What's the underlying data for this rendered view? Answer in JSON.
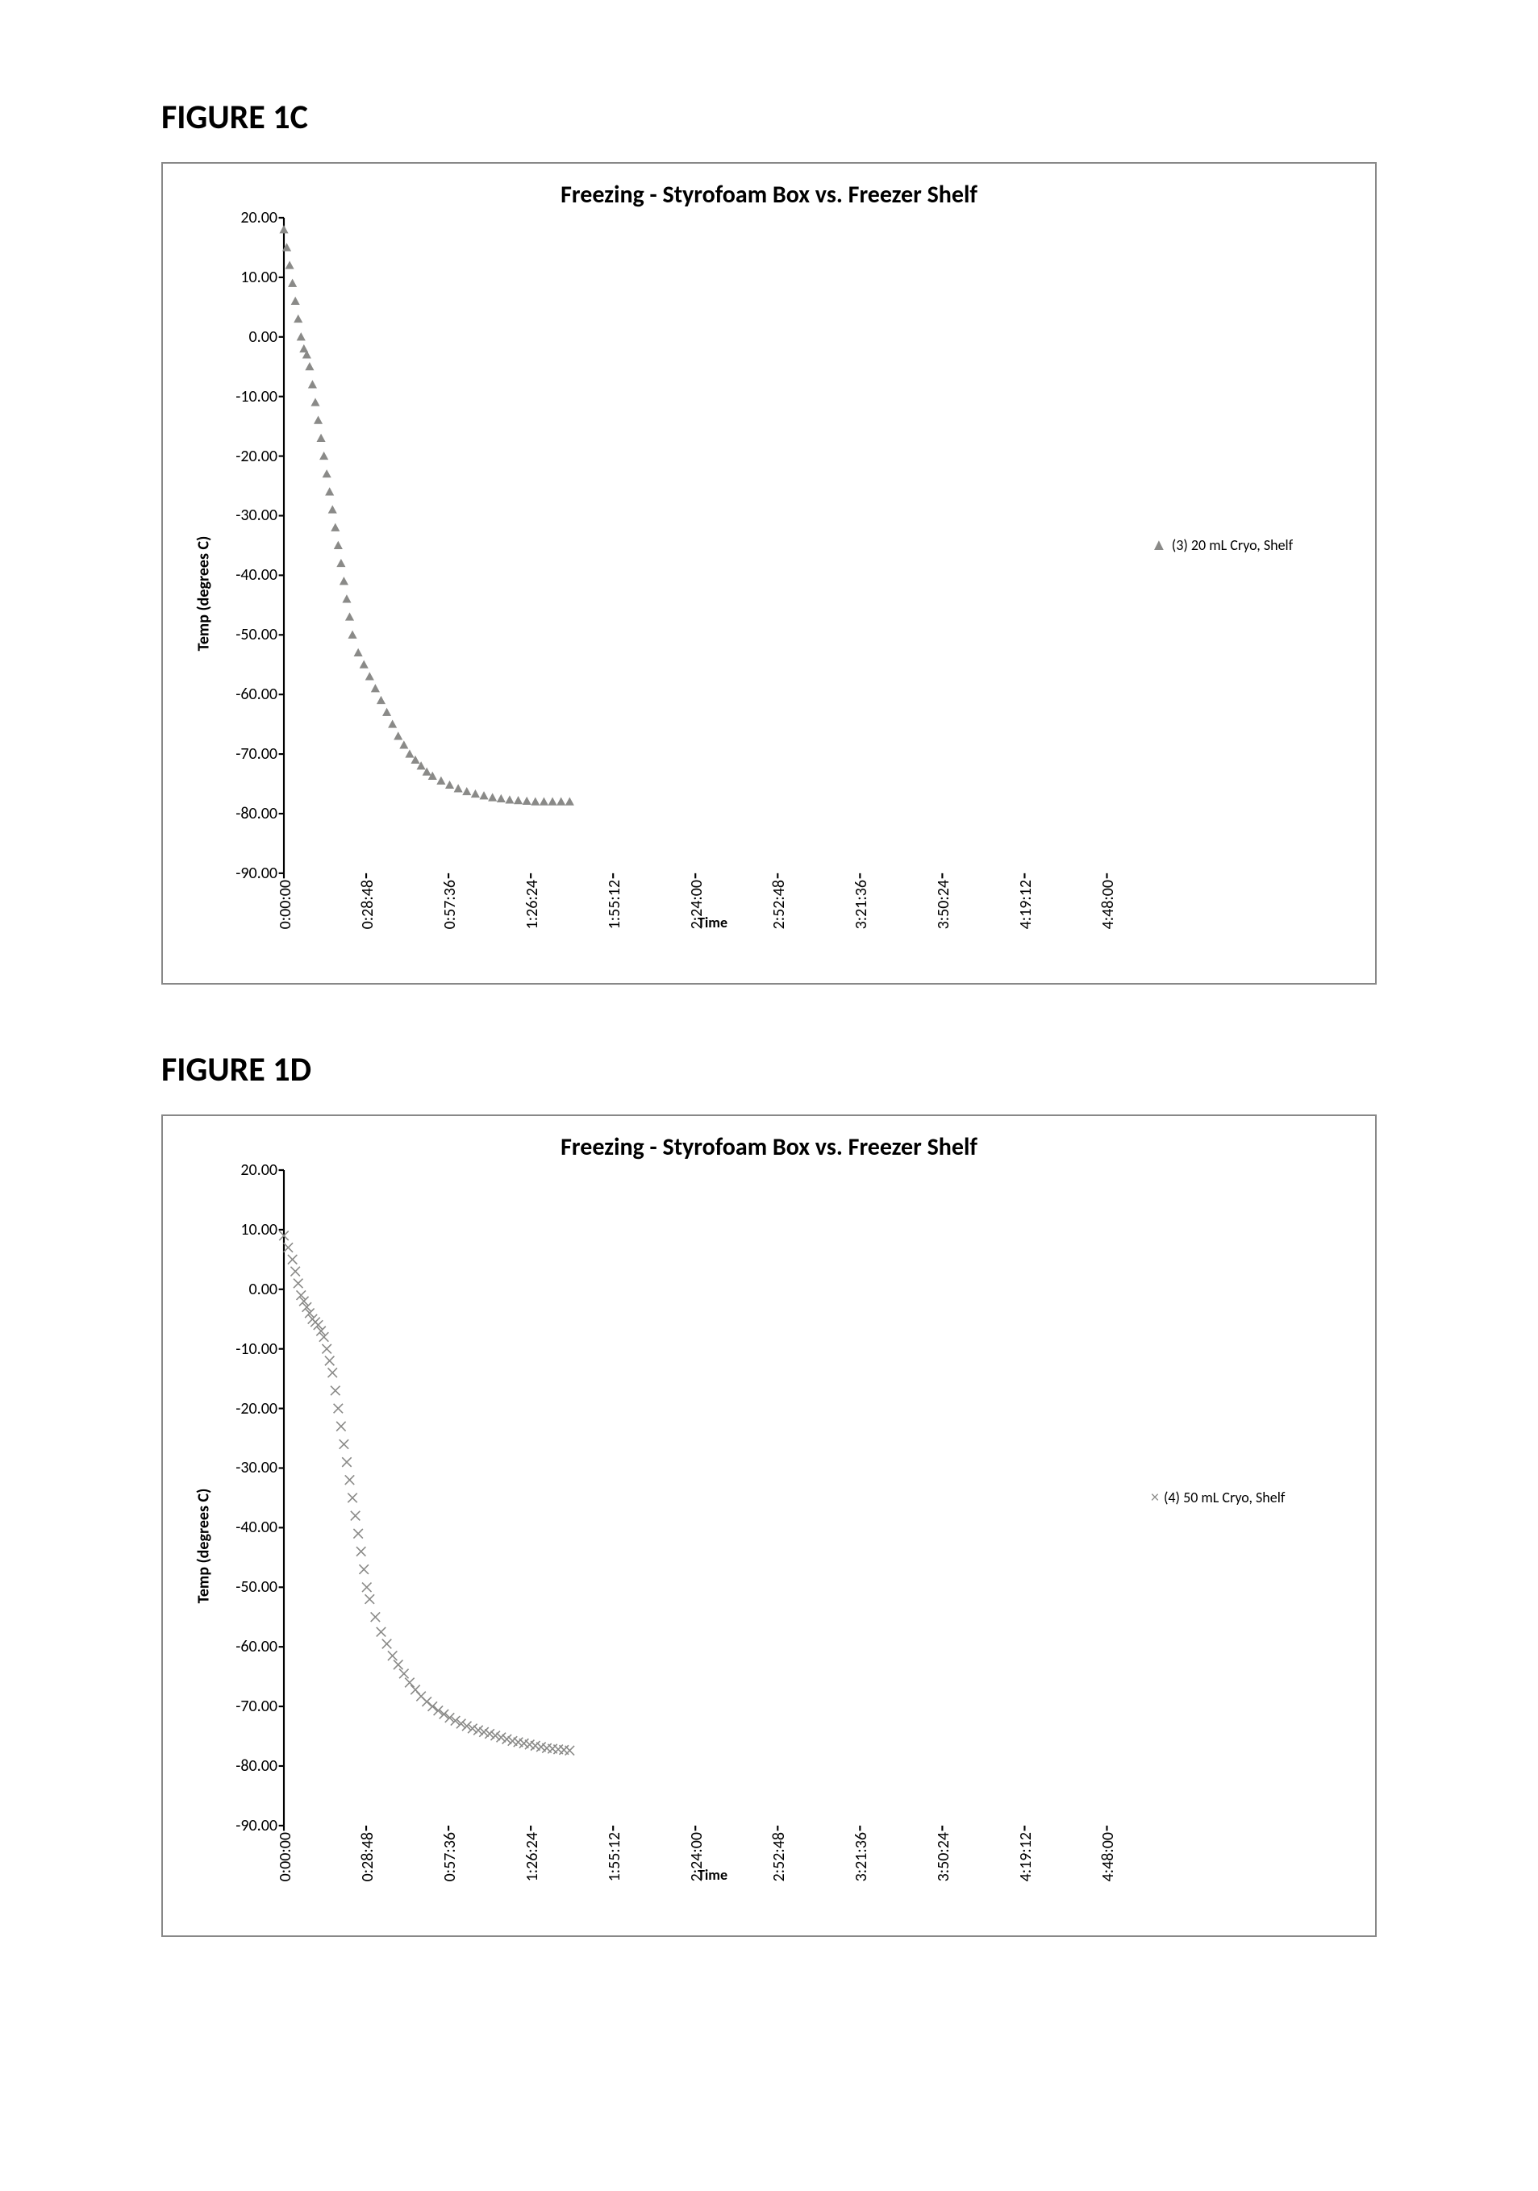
{
  "figures": [
    {
      "label": "FIGURE 1C",
      "chart": {
        "type": "scatter",
        "title": "Freezing - Styrofoam Box vs. Freezer Shelf",
        "ylabel": "Temp (degrees C)",
        "xlabel": "Time",
        "marker": "triangle",
        "marker_color": "#8a8a88",
        "marker_size": 8,
        "background_color": "#ffffff",
        "border_color": "#888888",
        "ylim": [
          -90,
          20
        ],
        "yticks": [
          "20.00",
          "10.00",
          "0.00",
          "-10.00",
          "-20.00",
          "-30.00",
          "-40.00",
          "-50.00",
          "-60.00",
          "-70.00",
          "-80.00",
          "-90.00"
        ],
        "ytick_vals": [
          20,
          10,
          0,
          -10,
          -20,
          -30,
          -40,
          -50,
          -60,
          -70,
          -80,
          -90
        ],
        "xticks": [
          "0:00:00",
          "0:28:48",
          "0:57:36",
          "1:26:24",
          "1:55:12",
          "2:24:00",
          "2:52:48",
          "3:21:36",
          "3:50:24",
          "4:19:12",
          "4:48:00"
        ],
        "xtick_vals_min": [
          0,
          28.8,
          57.6,
          86.4,
          115.2,
          144,
          172.8,
          201.6,
          230.4,
          259.2,
          288
        ],
        "xlim_min": [
          0,
          300
        ],
        "legend": {
          "marker": "▲",
          "text": "(3) 20 mL Cryo, Shelf"
        },
        "data_x_min": [
          0,
          1,
          2,
          3,
          4,
          5,
          6,
          7,
          8,
          9,
          10,
          11,
          12,
          13,
          14,
          15,
          16,
          17,
          18,
          19,
          20,
          21,
          22,
          23,
          24,
          26,
          28,
          30,
          32,
          34,
          36,
          38,
          40,
          42,
          44,
          46,
          48,
          50,
          52,
          55,
          58,
          61,
          64,
          67,
          70,
          73,
          76,
          79,
          82,
          85,
          88,
          91,
          94,
          97,
          100
        ],
        "data_y": [
          18,
          15,
          12,
          9,
          6,
          3,
          0,
          -2,
          -3,
          -5,
          -8,
          -11,
          -14,
          -17,
          -20,
          -23,
          -26,
          -29,
          -32,
          -35,
          -38,
          -41,
          -44,
          -47,
          -50,
          -53,
          -55,
          -57,
          -59,
          -61,
          -63,
          -65,
          -67,
          -68.5,
          -70,
          -71,
          -72,
          -73,
          -73.7,
          -74.5,
          -75.2,
          -75.8,
          -76.3,
          -76.7,
          -77,
          -77.3,
          -77.5,
          -77.7,
          -77.8,
          -77.9,
          -78,
          -78,
          -78,
          -78,
          -78
        ]
      }
    },
    {
      "label": "FIGURE 1D",
      "chart": {
        "type": "scatter",
        "title": "Freezing - Styrofoam Box vs. Freezer Shelf",
        "ylabel": "Temp (degrees C)",
        "xlabel": "Time",
        "marker": "cross",
        "marker_color": "#8a8a88",
        "marker_size": 9,
        "background_color": "#ffffff",
        "border_color": "#888888",
        "ylim": [
          -90,
          20
        ],
        "yticks": [
          "20.00",
          "10.00",
          "0.00",
          "-10.00",
          "-20.00",
          "-30.00",
          "-40.00",
          "-50.00",
          "-60.00",
          "-70.00",
          "-80.00",
          "-90.00"
        ],
        "ytick_vals": [
          20,
          10,
          0,
          -10,
          -20,
          -30,
          -40,
          -50,
          -60,
          -70,
          -80,
          -90
        ],
        "xticks": [
          "0:00:00",
          "0:28:48",
          "0:57:36",
          "1:26:24",
          "1:55:12",
          "2:24:00",
          "2:52:48",
          "3:21:36",
          "3:50:24",
          "4:19:12",
          "4:48:00"
        ],
        "xtick_vals_min": [
          0,
          28.8,
          57.6,
          86.4,
          115.2,
          144,
          172.8,
          201.6,
          230.4,
          259.2,
          288
        ],
        "xlim_min": [
          0,
          300
        ],
        "legend": {
          "marker": "×",
          "text": "(4) 50 mL Cryo, Shelf"
        },
        "data_x_min": [
          0,
          1.5,
          3,
          4,
          5,
          6,
          7,
          8,
          9,
          10,
          11,
          12,
          13,
          14,
          15,
          16,
          17,
          18,
          19,
          20,
          21,
          22,
          23,
          24,
          25,
          26,
          27,
          28,
          29,
          30,
          32,
          34,
          36,
          38,
          40,
          42,
          44,
          46,
          48,
          50,
          52,
          54,
          56,
          58,
          60,
          62,
          64,
          66,
          68,
          70,
          72,
          74,
          76,
          78,
          80,
          82,
          84,
          86,
          88,
          90,
          92,
          94,
          96,
          98,
          100
        ],
        "data_y": [
          9,
          7,
          5,
          3,
          1,
          -1,
          -2,
          -3,
          -4,
          -5,
          -5.5,
          -6,
          -7,
          -8,
          -10,
          -12,
          -14,
          -17,
          -20,
          -23,
          -26,
          -29,
          -32,
          -35,
          -38,
          -41,
          -44,
          -47,
          -50,
          -52,
          -55,
          -57.5,
          -59.5,
          -61.5,
          -63,
          -64.5,
          -66,
          -67.2,
          -68.3,
          -69.2,
          -70,
          -70.7,
          -71.3,
          -71.9,
          -72.4,
          -72.9,
          -73.3,
          -73.7,
          -74,
          -74.3,
          -74.6,
          -74.9,
          -75.2,
          -75.5,
          -75.8,
          -76,
          -76.2,
          -76.4,
          -76.6,
          -76.8,
          -77,
          -77.1,
          -77.2,
          -77.3,
          -77.4
        ]
      }
    }
  ],
  "fonts": {
    "figure_label_size": 42,
    "chart_title_size": 30,
    "axis_label_size": 20,
    "tick_size": 20,
    "legend_size": 18
  }
}
